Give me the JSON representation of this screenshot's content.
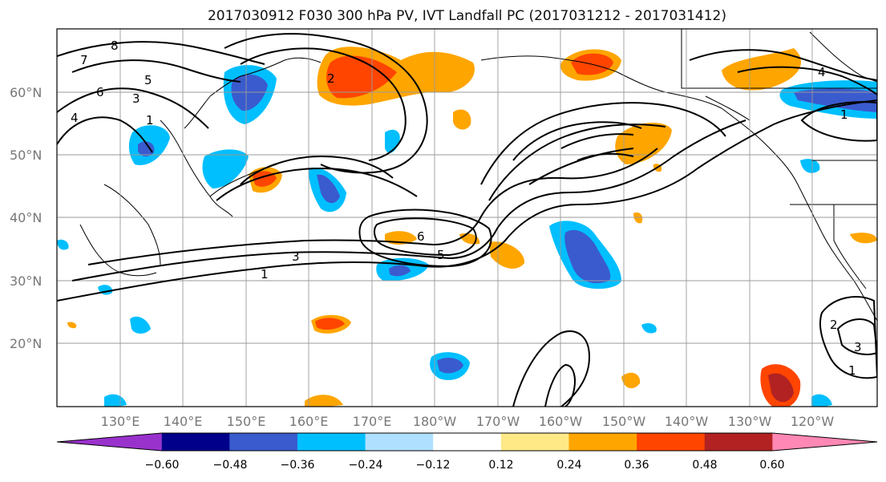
{
  "title": "2017030912 F030 300 hPa PV, IVT Landfall PC (2017031212 - 2017031412)",
  "map": {
    "lat_labels": [
      "60°N",
      "50°N",
      "40°N",
      "30°N",
      "20°N"
    ],
    "lon_labels": [
      "130°E",
      "140°E",
      "150°E",
      "160°E",
      "170°E",
      "180°W",
      "170°W",
      "160°W",
      "150°W",
      "140°W",
      "130°W",
      "120°W"
    ],
    "grid": true,
    "contour_labels": [
      "1",
      "3",
      "5",
      "6",
      "7",
      "8",
      "1",
      "2",
      "3",
      "4",
      "6",
      "5",
      "4",
      "1",
      "1",
      "2",
      "3"
    ]
  },
  "colorbar": {
    "ticks": [
      "−0.60",
      "−0.48",
      "−0.36",
      "−0.24",
      "−0.12",
      "0.12",
      "0.24",
      "0.36",
      "0.48",
      "0.60"
    ],
    "colors": [
      "#9932cc",
      "#00008b",
      "#3a5bcd",
      "#00bfff",
      "#b0e0ff",
      "#ffffff",
      "#ffe987",
      "#ffa500",
      "#ff4500",
      "#b22222",
      "#ff88b4"
    ]
  }
}
